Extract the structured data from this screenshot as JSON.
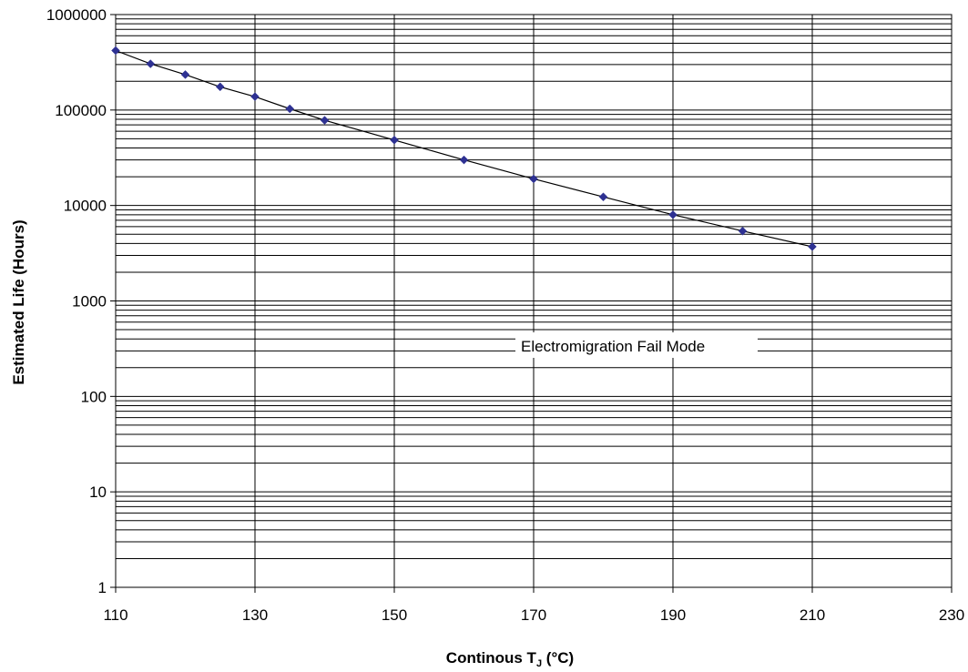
{
  "chart_data": {
    "type": "scatter",
    "xlabel_main": "Continous T",
    "xlabel_sub": "J",
    "xlabel_unit": " (°C)",
    "ylabel": "Estimated Life (Hours)",
    "xlim": [
      110,
      230
    ],
    "ylim": [
      1,
      1000000
    ],
    "y_scale": "log",
    "grid": true,
    "x_ticks": [
      "110",
      "130",
      "150",
      "170",
      "190",
      "210",
      "230"
    ],
    "y_ticks": [
      "1",
      "10",
      "100",
      "1000",
      "10000",
      "100000",
      "1000000"
    ],
    "annotation": "Electromigration Fail Mode",
    "marker_color": "#2E3192",
    "series": [
      {
        "x": [
          110,
          115,
          120,
          125,
          130,
          135,
          140,
          150,
          160,
          170,
          180,
          190,
          200,
          210
        ],
        "y": [
          420000,
          305000,
          235000,
          175000,
          138000,
          103000,
          78000,
          48500,
          30000,
          19000,
          12300,
          8000,
          5400,
          3700
        ]
      }
    ]
  }
}
